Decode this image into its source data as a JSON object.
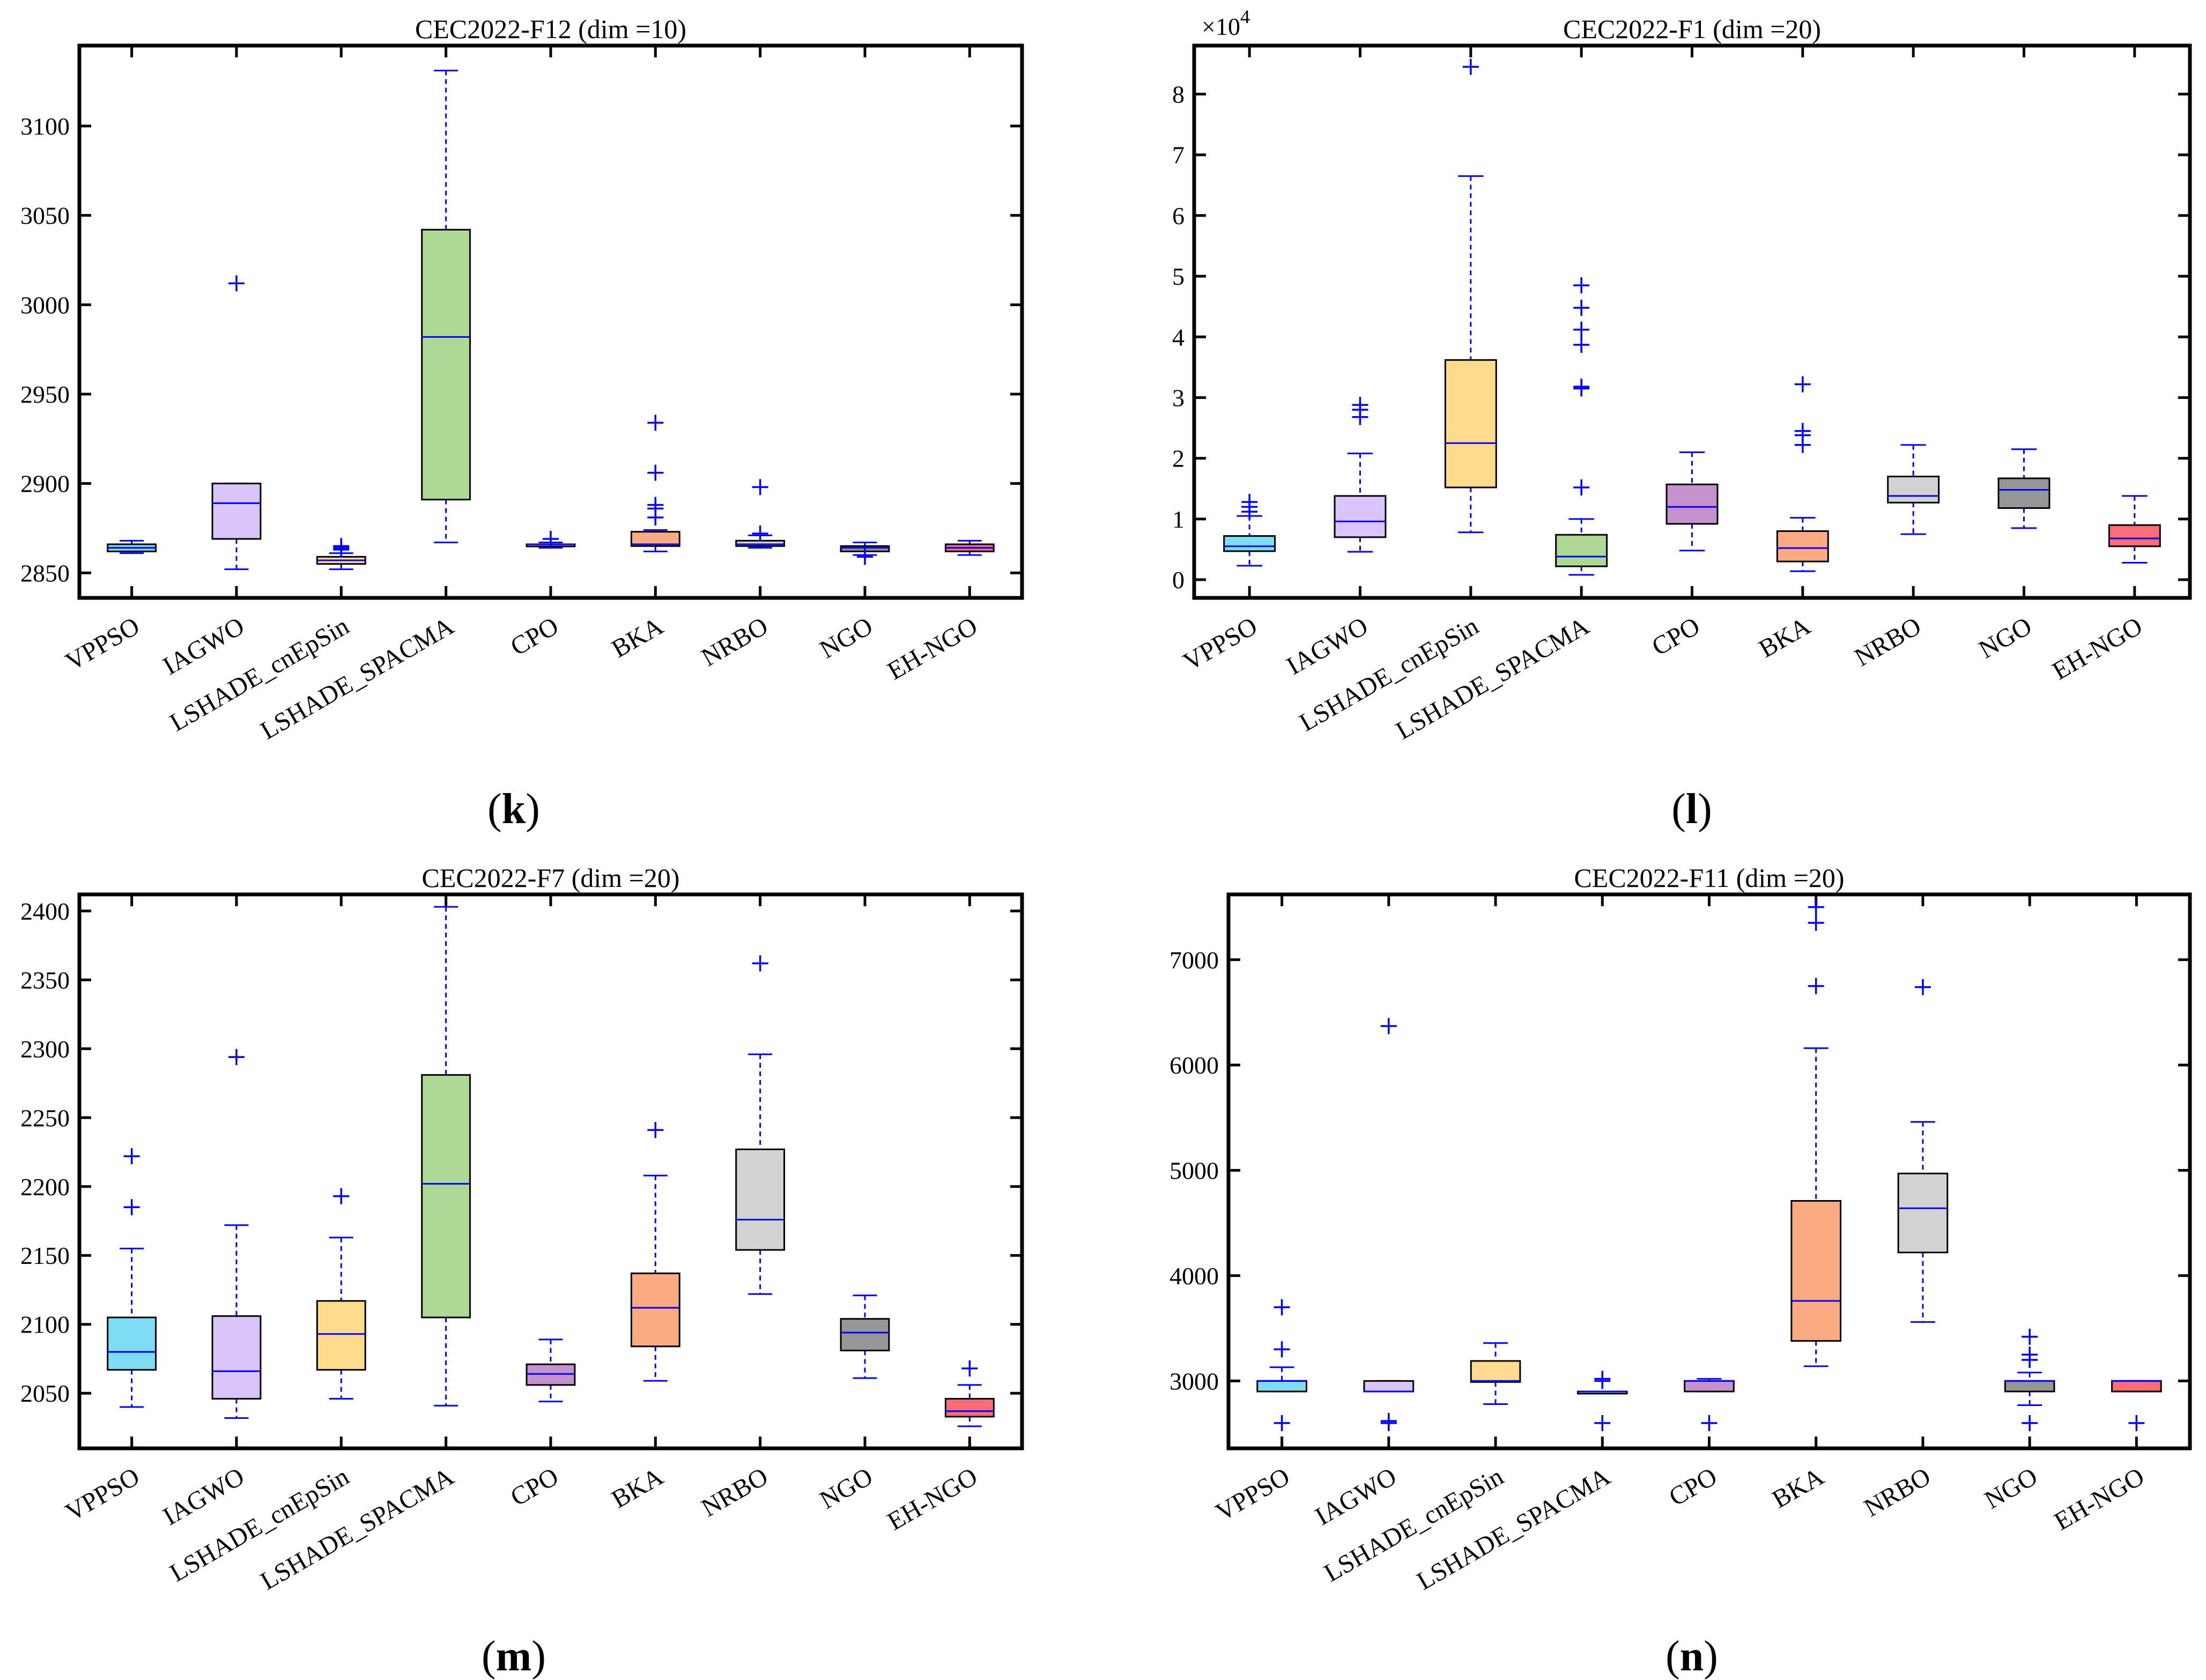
{
  "figure": {
    "labels": {
      "k": {
        "open": "(",
        "letter": "k",
        "close": ")"
      },
      "l": {
        "open": "(",
        "letter": "l",
        "close": ")"
      },
      "m": {
        "open": "(",
        "letter": "m",
        "close": ")"
      },
      "n": {
        "open": "(",
        "letter": "n",
        "close": ")"
      }
    }
  },
  "colors": {
    "axis": "#000000",
    "whisker": "#0000ff",
    "median": "#0000ff",
    "outlier": "#0000ff",
    "box_fill": {
      "VPPSO": "#7fdcf5",
      "IAGWO": "#d8c4f8",
      "LSHADE_cnEpSin": "#ffd98c",
      "LSHADE_SPACMA": "#afd896",
      "CPO": "#c592cd",
      "BKA": "#fcaa82",
      "NRBO": "#d2d2d2",
      "NGO": "#969696",
      "EH-NGO": "#fb6b78"
    }
  },
  "chart_data": [
    {
      "id": "k",
      "type": "box",
      "title": "CEC2022-F12 (dim =10)",
      "categories": [
        "VPPSO",
        "IAGWO",
        "LSHADE_cnEpSin",
        "LSHADE_SPACMA",
        "CPO",
        "BKA",
        "NRBO",
        "NGO",
        "EH-NGO"
      ],
      "ylim": [
        2836,
        3145
      ],
      "yticks": [
        2850,
        2900,
        2950,
        3000,
        3050,
        3100
      ],
      "ytick_labels": [
        "2850",
        "2900",
        "2950",
        "3000",
        "3050",
        "3100"
      ],
      "exponent_label": null,
      "boxes": [
        {
          "name": "VPPSO",
          "whisker_low": 2861,
          "q1": 2862,
          "median": 2864,
          "q3": 2866,
          "whisker_high": 2868,
          "outliers": []
        },
        {
          "name": "IAGWO",
          "whisker_low": 2852,
          "q1": 2869,
          "median": 2889,
          "q3": 2900,
          "whisker_high": 2900,
          "outliers": [
            3012
          ]
        },
        {
          "name": "LSHADE_cnEpSin",
          "whisker_low": 2852,
          "q1": 2855,
          "median": 2857,
          "q3": 2859,
          "whisker_high": 2861,
          "outliers": [
            2863,
            2864,
            2865
          ]
        },
        {
          "name": "LSHADE_SPACMA",
          "whisker_low": 2867,
          "q1": 2891,
          "median": 2982,
          "q3": 3042,
          "whisker_high": 3131,
          "outliers": []
        },
        {
          "name": "CPO",
          "whisker_low": 2864,
          "q1": 2865,
          "median": 2866,
          "q3": 2866,
          "whisker_high": 2867,
          "outliers": [
            2869
          ]
        },
        {
          "name": "BKA",
          "whisker_low": 2862,
          "q1": 2865,
          "median": 2866,
          "q3": 2873,
          "whisker_high": 2874,
          "outliers": [
            2881,
            2886,
            2888,
            2906,
            2934
          ]
        },
        {
          "name": "NRBO",
          "whisker_low": 2864,
          "q1": 2865,
          "median": 2866,
          "q3": 2868,
          "whisker_high": 2871,
          "outliers": [
            2872,
            2898
          ]
        },
        {
          "name": "NGO",
          "whisker_low": 2860,
          "q1": 2862,
          "median": 2864,
          "q3": 2865,
          "whisker_high": 2867,
          "outliers": [
            2859
          ]
        },
        {
          "name": "EH-NGO",
          "whisker_low": 2860,
          "q1": 2862,
          "median": 2864,
          "q3": 2866,
          "whisker_high": 2868,
          "outliers": []
        }
      ]
    },
    {
      "id": "l",
      "type": "box",
      "title": "CEC2022-F1 (dim =20)",
      "categories": [
        "VPPSO",
        "IAGWO",
        "LSHADE_cnEpSin",
        "LSHADE_SPACMA",
        "CPO",
        "BKA",
        "NRBO",
        "NGO",
        "EH-NGO"
      ],
      "ylim": [
        -0.3,
        8.8
      ],
      "yticks": [
        0,
        1,
        2,
        3,
        4,
        5,
        6,
        7,
        8
      ],
      "ytick_labels": [
        "0",
        "1",
        "2",
        "3",
        "4",
        "5",
        "6",
        "7",
        "8"
      ],
      "exponent_label": {
        "base": "×10",
        "power": "4"
      },
      "boxes": [
        {
          "name": "VPPSO",
          "whisker_low": 0.23,
          "q1": 0.47,
          "median": 0.55,
          "q3": 0.72,
          "whisker_high": 1.05,
          "outliers": [
            1.12,
            1.2,
            1.28
          ]
        },
        {
          "name": "IAGWO",
          "whisker_low": 0.46,
          "q1": 0.7,
          "median": 0.96,
          "q3": 1.38,
          "whisker_high": 2.08,
          "outliers": [
            2.68,
            2.8,
            2.88
          ]
        },
        {
          "name": "LSHADE_cnEpSin",
          "whisker_low": 0.78,
          "q1": 1.52,
          "median": 2.25,
          "q3": 3.62,
          "whisker_high": 6.65,
          "outliers": [
            8.45
          ]
        },
        {
          "name": "LSHADE_SPACMA",
          "whisker_low": 0.08,
          "q1": 0.22,
          "median": 0.38,
          "q3": 0.74,
          "whisker_high": 1.0,
          "outliers": [
            1.52,
            3.15,
            3.18,
            3.87,
            4.12,
            4.48,
            4.85
          ]
        },
        {
          "name": "CPO",
          "whisker_low": 0.48,
          "q1": 0.92,
          "median": 1.2,
          "q3": 1.57,
          "whisker_high": 2.1,
          "outliers": []
        },
        {
          "name": "BKA",
          "whisker_low": 0.14,
          "q1": 0.3,
          "median": 0.52,
          "q3": 0.8,
          "whisker_high": 1.02,
          "outliers": [
            2.22,
            2.38,
            2.45,
            3.22
          ]
        },
        {
          "name": "NRBO",
          "whisker_low": 0.75,
          "q1": 1.27,
          "median": 1.38,
          "q3": 1.7,
          "whisker_high": 2.22,
          "outliers": []
        },
        {
          "name": "NGO",
          "whisker_low": 0.85,
          "q1": 1.18,
          "median": 1.48,
          "q3": 1.67,
          "whisker_high": 2.15,
          "outliers": []
        },
        {
          "name": "EH-NGO",
          "whisker_low": 0.28,
          "q1": 0.55,
          "median": 0.68,
          "q3": 0.9,
          "whisker_high": 1.38,
          "outliers": []
        }
      ]
    },
    {
      "id": "m",
      "type": "box",
      "title": "CEC2022-F7 (dim =20)",
      "categories": [
        "VPPSO",
        "IAGWO",
        "LSHADE_cnEpSin",
        "LSHADE_SPACMA",
        "CPO",
        "BKA",
        "NRBO",
        "NGO",
        "EH-NGO"
      ],
      "ylim": [
        2010,
        2412
      ],
      "yticks": [
        2050,
        2100,
        2150,
        2200,
        2250,
        2300,
        2350,
        2400
      ],
      "ytick_labels": [
        "2050",
        "2100",
        "2150",
        "2200",
        "2250",
        "2300",
        "2350",
        "2400"
      ],
      "exponent_label": null,
      "boxes": [
        {
          "name": "VPPSO",
          "whisker_low": 2040,
          "q1": 2067,
          "median": 2080,
          "q3": 2105,
          "whisker_high": 2155,
          "outliers": [
            2185,
            2222
          ]
        },
        {
          "name": "IAGWO",
          "whisker_low": 2032,
          "q1": 2046,
          "median": 2066,
          "q3": 2106,
          "whisker_high": 2172,
          "outliers": [
            2294
          ]
        },
        {
          "name": "LSHADE_cnEpSin",
          "whisker_low": 2046,
          "q1": 2067,
          "median": 2093,
          "q3": 2117,
          "whisker_high": 2163,
          "outliers": [
            2193
          ]
        },
        {
          "name": "LSHADE_SPACMA",
          "whisker_low": 2041,
          "q1": 2105,
          "median": 2202,
          "q3": 2281,
          "whisker_high": 2403,
          "outliers": []
        },
        {
          "name": "CPO",
          "whisker_low": 2044,
          "q1": 2056,
          "median": 2064,
          "q3": 2071,
          "whisker_high": 2089,
          "outliers": []
        },
        {
          "name": "BKA",
          "whisker_low": 2059,
          "q1": 2084,
          "median": 2112,
          "q3": 2137,
          "whisker_high": 2208,
          "outliers": [
            2241
          ]
        },
        {
          "name": "NRBO",
          "whisker_low": 2122,
          "q1": 2154,
          "median": 2176,
          "q3": 2227,
          "whisker_high": 2296,
          "outliers": [
            2362
          ]
        },
        {
          "name": "NGO",
          "whisker_low": 2061,
          "q1": 2081,
          "median": 2094,
          "q3": 2104,
          "whisker_high": 2121,
          "outliers": []
        },
        {
          "name": "EH-NGO",
          "whisker_low": 2026,
          "q1": 2033,
          "median": 2037,
          "q3": 2046,
          "whisker_high": 2056,
          "outliers": [
            2068
          ]
        }
      ]
    },
    {
      "id": "n",
      "type": "box",
      "title": "CEC2022-F11 (dim =20)",
      "categories": [
        "VPPSO",
        "IAGWO",
        "LSHADE_cnEpSin",
        "LSHADE_SPACMA",
        "CPO",
        "BKA",
        "NRBO",
        "NGO",
        "EH-NGO"
      ],
      "ylim": [
        2360,
        7620
      ],
      "yticks": [
        3000,
        4000,
        5000,
        6000,
        7000
      ],
      "ytick_labels": [
        "3000",
        "4000",
        "5000",
        "6000",
        "7000"
      ],
      "exponent_label": null,
      "boxes": [
        {
          "name": "VPPSO",
          "whisker_low": 2900,
          "q1": 2900,
          "median": 3000,
          "q3": 3000,
          "whisker_high": 3130,
          "outliers": [
            2600,
            3300,
            3700
          ]
        },
        {
          "name": "IAGWO",
          "whisker_low": 2900,
          "q1": 2900,
          "median": 2900,
          "q3": 3000,
          "whisker_high": 3000,
          "outliers": [
            2600,
            2620,
            6370
          ]
        },
        {
          "name": "LSHADE_cnEpSin",
          "whisker_low": 2780,
          "q1": 2990,
          "median": 3000,
          "q3": 3190,
          "whisker_high": 3360,
          "outliers": []
        },
        {
          "name": "LSHADE_SPACMA",
          "whisker_low": 2900,
          "q1": 2900,
          "median": 2900,
          "q3": 2900,
          "whisker_high": 2900,
          "outliers": [
            2600,
            3000,
            3020
          ]
        },
        {
          "name": "CPO",
          "whisker_low": 2900,
          "q1": 2900,
          "median": 3000,
          "q3": 3000,
          "whisker_high": 3020,
          "outliers": [
            2600
          ]
        },
        {
          "name": "BKA",
          "whisker_low": 3140,
          "q1": 3380,
          "median": 3760,
          "q3": 4710,
          "whisker_high": 6160,
          "outliers": [
            6750,
            7350,
            7500
          ]
        },
        {
          "name": "NRBO",
          "whisker_low": 3560,
          "q1": 4220,
          "median": 4640,
          "q3": 4970,
          "whisker_high": 5460,
          "outliers": [
            6740
          ]
        },
        {
          "name": "NGO",
          "whisker_low": 2770,
          "q1": 2900,
          "median": 3000,
          "q3": 3000,
          "whisker_high": 3080,
          "outliers": [
            2600,
            3200,
            3250,
            3420
          ]
        },
        {
          "name": "EH-NGO",
          "whisker_low": 2900,
          "q1": 2900,
          "median": 3000,
          "q3": 3000,
          "whisker_high": 3000,
          "outliers": [
            2600
          ]
        }
      ]
    }
  ]
}
